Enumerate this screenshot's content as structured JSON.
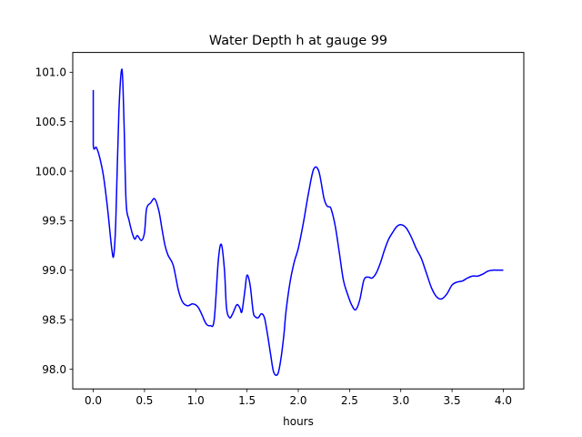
{
  "chart_data": {
    "type": "line",
    "title": "Water Depth h at gauge 99",
    "xlabel": "hours",
    "ylabel": "",
    "xlim": [
      -0.2,
      4.2
    ],
    "ylim": [
      97.8,
      101.2
    ],
    "xticks": [
      0.0,
      0.5,
      1.0,
      1.5,
      2.0,
      2.5,
      3.0,
      3.5,
      4.0
    ],
    "xtick_labels": [
      "0.0",
      "0.5",
      "1.0",
      "1.5",
      "2.0",
      "2.5",
      "3.0",
      "3.5",
      "4.0"
    ],
    "yticks": [
      98.0,
      98.5,
      99.0,
      99.5,
      100.0,
      100.5,
      101.0
    ],
    "ytick_labels": [
      "98.0",
      "98.5",
      "99.0",
      "99.5",
      "100.0",
      "100.5",
      "101.0"
    ],
    "grid": false,
    "series": [
      {
        "color": "#0000ff",
        "x": [
          0,
          0,
          0.03,
          0.06,
          0.1,
          0.14,
          0.18,
          0.2,
          0.22,
          0.25,
          0.28,
          0.3,
          0.32,
          0.35,
          0.4,
          0.43,
          0.47,
          0.5,
          0.52,
          0.56,
          0.6,
          0.64,
          0.67,
          0.7,
          0.73,
          0.78,
          0.83,
          0.87,
          0.92,
          0.97,
          1.02,
          1.06,
          1.1,
          1.14,
          1.18,
          1.22,
          1.25,
          1.28,
          1.3,
          1.33,
          1.36,
          1.4,
          1.43,
          1.45,
          1.48,
          1.5,
          1.53,
          1.56,
          1.58,
          1.61,
          1.64,
          1.67,
          1.7,
          1.73,
          1.76,
          1.8,
          1.83,
          1.86,
          1.88,
          1.92,
          1.96,
          2.0,
          2.05,
          2.1,
          2.15,
          2.2,
          2.25,
          2.28,
          2.3,
          2.32,
          2.36,
          2.4,
          2.44,
          2.48,
          2.52,
          2.56,
          2.6,
          2.64,
          2.68,
          2.72,
          2.76,
          2.8,
          2.84,
          2.88,
          2.92,
          2.96,
          3.0,
          3.05,
          3.1,
          3.15,
          3.2,
          3.25,
          3.3,
          3.35,
          3.4,
          3.45,
          3.5,
          3.55,
          3.6,
          3.65,
          3.7,
          3.75,
          3.8,
          3.85,
          3.9,
          3.95,
          4.0
        ],
        "y": [
          100.82,
          100.27,
          100.24,
          100.15,
          99.95,
          99.62,
          99.22,
          99.15,
          99.5,
          100.6,
          101.03,
          100.5,
          99.7,
          99.5,
          99.32,
          99.35,
          99.3,
          99.38,
          99.62,
          99.68,
          99.72,
          99.6,
          99.42,
          99.25,
          99.15,
          99.05,
          98.8,
          98.68,
          98.64,
          98.66,
          98.63,
          98.55,
          98.46,
          98.44,
          98.5,
          99.1,
          99.26,
          99.0,
          98.62,
          98.52,
          98.56,
          98.65,
          98.62,
          98.58,
          98.8,
          98.95,
          98.85,
          98.58,
          98.53,
          98.52,
          98.56,
          98.52,
          98.35,
          98.15,
          97.97,
          97.95,
          98.1,
          98.35,
          98.58,
          98.88,
          99.08,
          99.22,
          99.48,
          99.78,
          100.02,
          100.0,
          99.73,
          99.65,
          99.64,
          99.62,
          99.45,
          99.18,
          98.9,
          98.76,
          98.65,
          98.6,
          98.7,
          98.9,
          98.93,
          98.92,
          98.97,
          99.07,
          99.2,
          99.31,
          99.38,
          99.44,
          99.46,
          99.43,
          99.34,
          99.22,
          99.12,
          98.97,
          98.82,
          98.73,
          98.71,
          98.76,
          98.85,
          98.88,
          98.89,
          98.92,
          98.94,
          98.94,
          98.96,
          98.99,
          99.0,
          99.0,
          99.0
        ]
      }
    ]
  }
}
